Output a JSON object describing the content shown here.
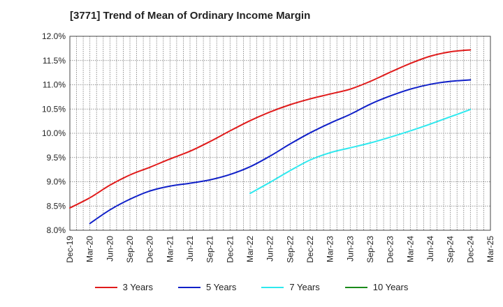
{
  "chart_data": {
    "type": "line",
    "title": "[3771]  Trend of Mean of Ordinary Income Margin",
    "xlabel": "",
    "ylabel": "",
    "x_tick_labels": [
      "Dec-19",
      "Mar-20",
      "Jun-20",
      "Sep-20",
      "Dec-20",
      "Mar-21",
      "Jun-21",
      "Sep-21",
      "Dec-21",
      "Mar-22",
      "Jun-22",
      "Sep-22",
      "Dec-22",
      "Mar-23",
      "Jun-23",
      "Sep-23",
      "Dec-23",
      "Mar-24",
      "Jun-24",
      "Sep-24",
      "Dec-24",
      "Mar-25"
    ],
    "y_tick_labels": [
      "8.0%",
      "8.5%",
      "9.0%",
      "9.5%",
      "10.0%",
      "10.5%",
      "11.0%",
      "11.5%",
      "12.0%"
    ],
    "y_ticks": [
      8.0,
      8.5,
      9.0,
      9.5,
      10.0,
      10.5,
      11.0,
      11.5,
      12.0
    ],
    "ylim": [
      8.0,
      12.0
    ],
    "grid": true,
    "legend_placement": "bottom",
    "series": [
      {
        "name": "3 Years",
        "color": "#e01b1b",
        "points": [
          [
            "Dec-19",
            8.46
          ],
          [
            "Mar-20",
            8.67
          ],
          [
            "Jun-20",
            8.93
          ],
          [
            "Sep-20",
            9.14
          ],
          [
            "Dec-20",
            9.3
          ],
          [
            "Mar-21",
            9.47
          ],
          [
            "Jun-21",
            9.63
          ],
          [
            "Sep-21",
            9.83
          ],
          [
            "Dec-21",
            10.05
          ],
          [
            "Mar-22",
            10.26
          ],
          [
            "Jun-22",
            10.44
          ],
          [
            "Sep-22",
            10.59
          ],
          [
            "Dec-22",
            10.71
          ],
          [
            "Mar-23",
            10.81
          ],
          [
            "Jun-23",
            10.91
          ],
          [
            "Sep-23",
            11.07
          ],
          [
            "Dec-23",
            11.26
          ],
          [
            "Mar-24",
            11.44
          ],
          [
            "Jun-24",
            11.59
          ],
          [
            "Sep-24",
            11.68
          ],
          [
            "Dec-24",
            11.72
          ]
        ]
      },
      {
        "name": "5 Years",
        "color": "#1020c8",
        "points": [
          [
            "Mar-20",
            8.14
          ],
          [
            "Jun-20",
            8.42
          ],
          [
            "Sep-20",
            8.64
          ],
          [
            "Dec-20",
            8.81
          ],
          [
            "Mar-21",
            8.91
          ],
          [
            "Jun-21",
            8.97
          ],
          [
            "Sep-21",
            9.04
          ],
          [
            "Dec-21",
            9.15
          ],
          [
            "Mar-22",
            9.31
          ],
          [
            "Jun-22",
            9.53
          ],
          [
            "Sep-22",
            9.78
          ],
          [
            "Dec-22",
            10.01
          ],
          [
            "Mar-23",
            10.21
          ],
          [
            "Jun-23",
            10.39
          ],
          [
            "Sep-23",
            10.6
          ],
          [
            "Dec-23",
            10.77
          ],
          [
            "Mar-24",
            10.91
          ],
          [
            "Jun-24",
            11.01
          ],
          [
            "Sep-24",
            11.07
          ],
          [
            "Dec-24",
            11.1
          ]
        ]
      },
      {
        "name": "7 Years",
        "color": "#2ee8ee",
        "points": [
          [
            "Mar-22",
            8.76
          ],
          [
            "Jun-22",
            8.99
          ],
          [
            "Sep-22",
            9.23
          ],
          [
            "Dec-22",
            9.45
          ],
          [
            "Mar-23",
            9.6
          ],
          [
            "Jun-23",
            9.7
          ],
          [
            "Sep-23",
            9.8
          ],
          [
            "Dec-23",
            9.92
          ],
          [
            "Mar-24",
            10.05
          ],
          [
            "Jun-24",
            10.19
          ],
          [
            "Sep-24",
            10.34
          ],
          [
            "Dec-24",
            10.49
          ]
        ]
      },
      {
        "name": "10 Years",
        "color": "#1a8a1a",
        "points": []
      }
    ]
  }
}
